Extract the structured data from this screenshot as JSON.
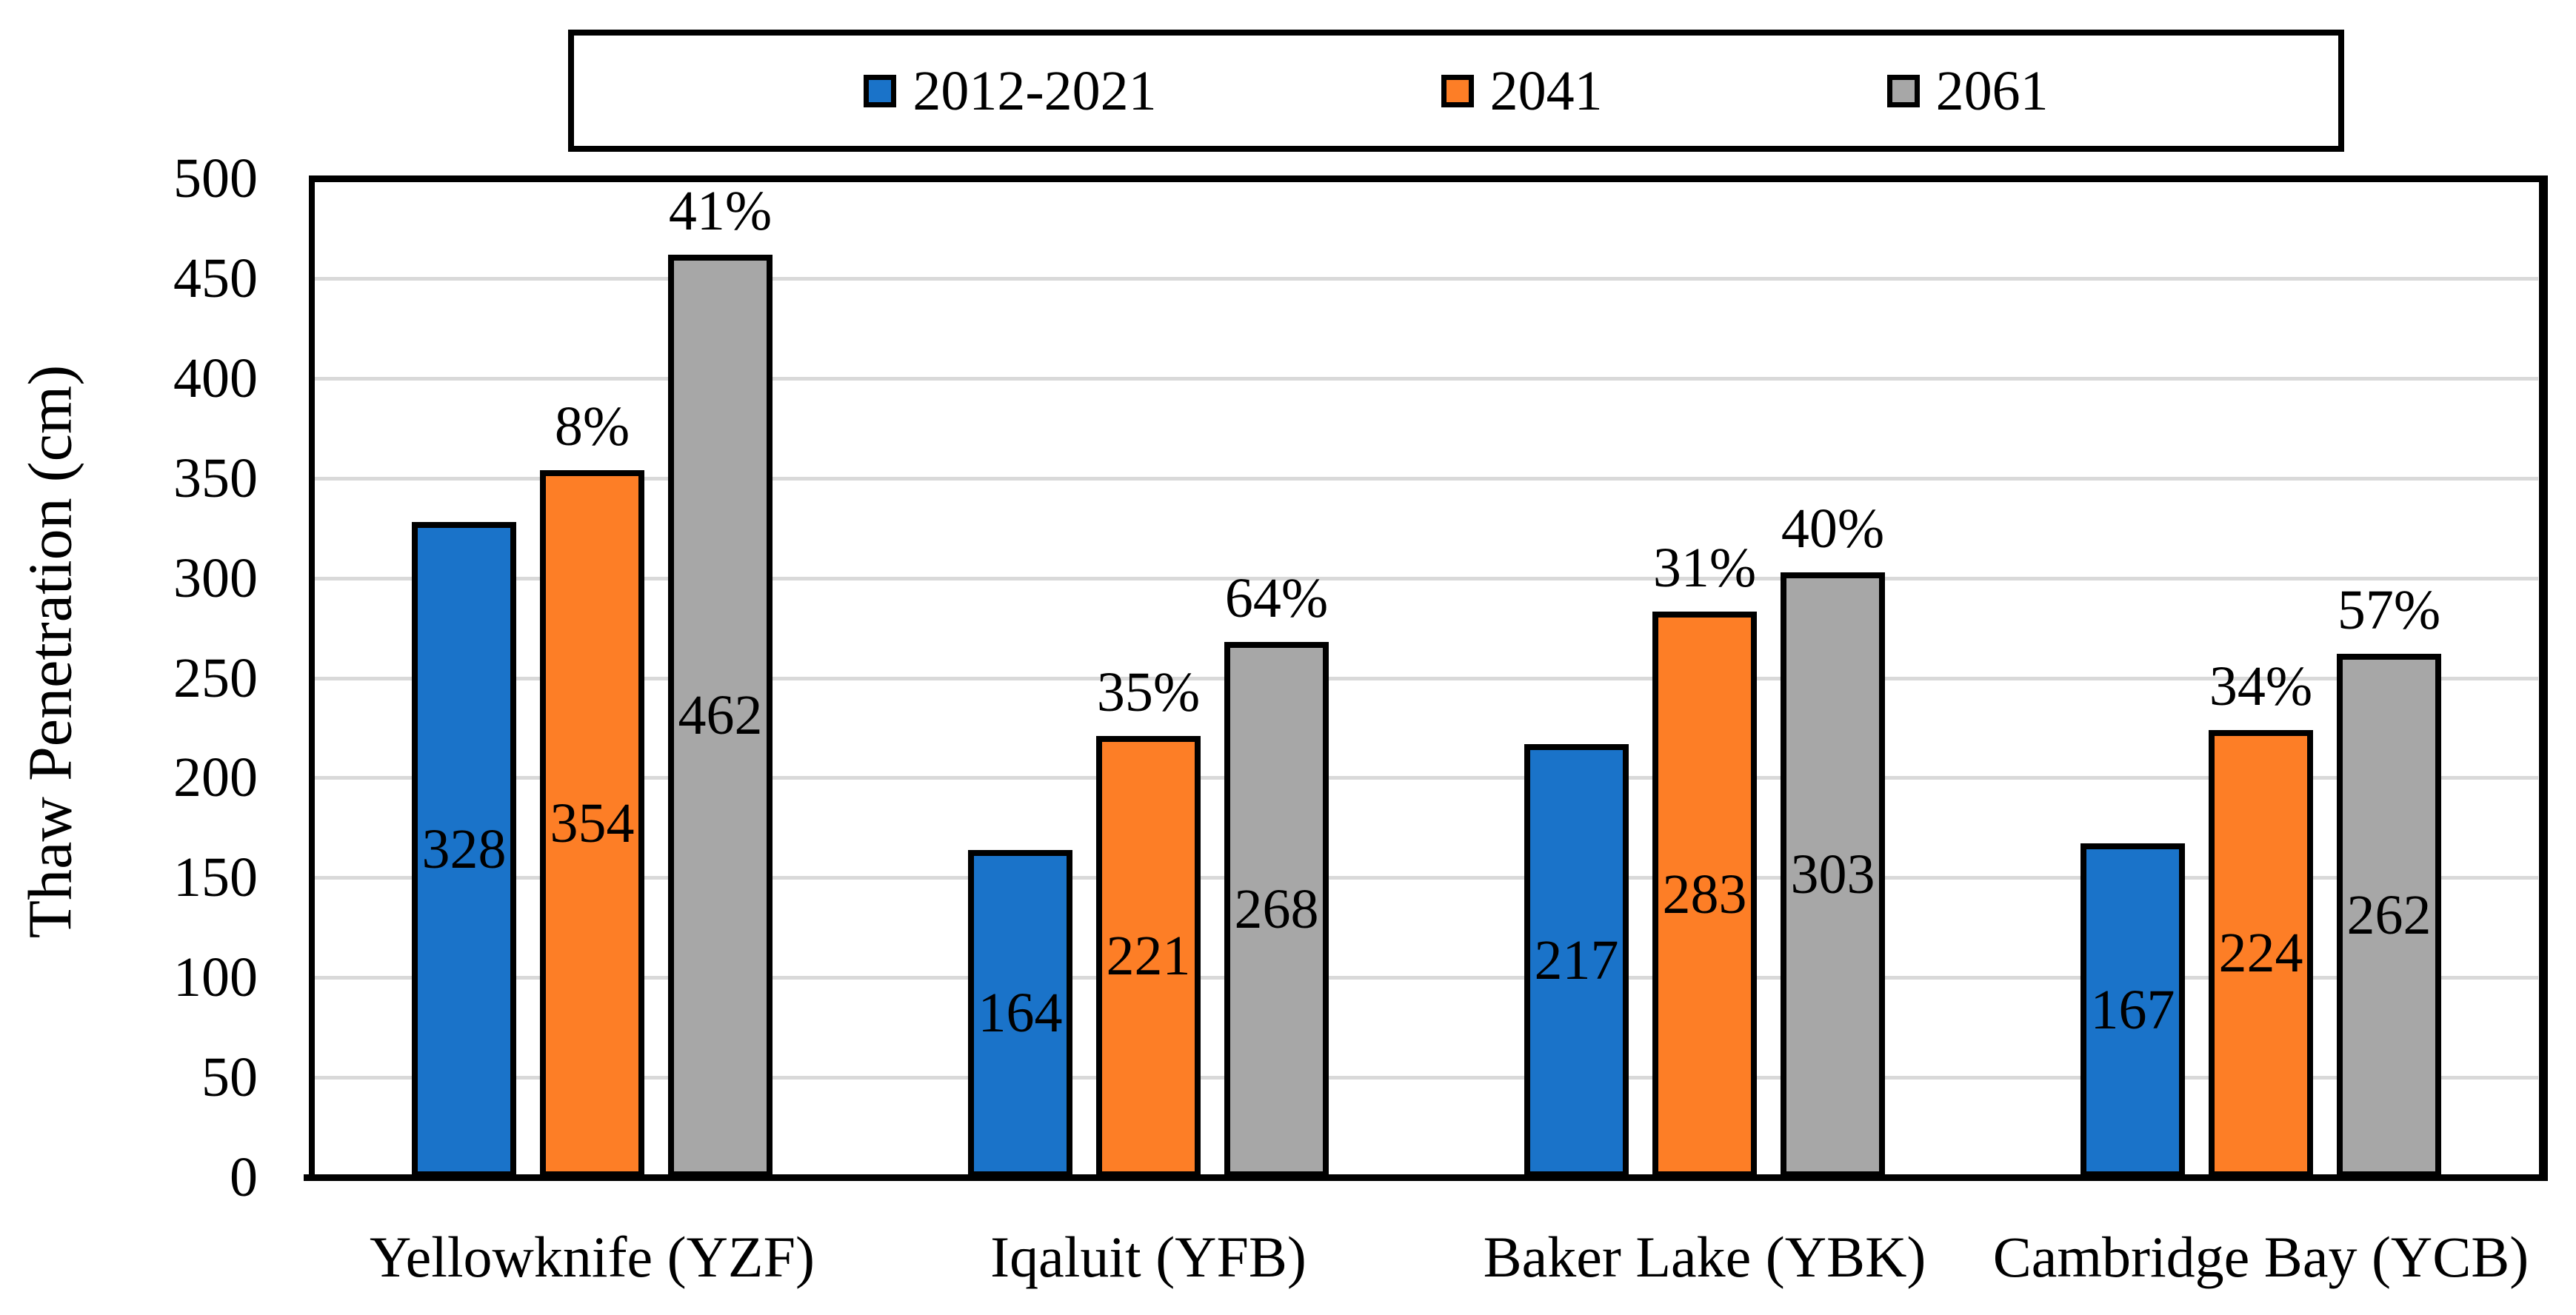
{
  "chart_data": {
    "type": "bar",
    "title": "",
    "ylabel": "Thaw Penetration (cm)",
    "xlabel": "",
    "ylim": [
      0,
      500
    ],
    "ytick_step": 50,
    "yticks": [
      0,
      50,
      100,
      150,
      200,
      250,
      300,
      350,
      400,
      450,
      500
    ],
    "grid": true,
    "legend_position": "top-center",
    "categories": [
      "Yellowknife (YZF)",
      "Iqaluit (YFB)",
      "Baker Lake (YBK)",
      "Cambridge Bay (YCB)"
    ],
    "series": [
      {
        "name": "2012-2021",
        "color": "#1A73C9",
        "values": [
          328,
          164,
          217,
          167
        ],
        "pct_labels": [
          "",
          "",
          "",
          ""
        ]
      },
      {
        "name": "2041",
        "color": "#FD7E26",
        "values": [
          354,
          221,
          283,
          224
        ],
        "pct_labels": [
          "8%",
          "35%",
          "31%",
          "34%"
        ]
      },
      {
        "name": "2061",
        "color": "#A7A7A7",
        "values": [
          462,
          268,
          303,
          262
        ],
        "pct_labels": [
          "41%",
          "64%",
          "40%",
          "57%"
        ]
      }
    ],
    "colors": {
      "grid": "#D9D9D9",
      "axis": "#000000",
      "bar_border": "#000000",
      "text": "#000000",
      "background": "#FFFFFF",
      "legend_border": "#000000"
    }
  }
}
